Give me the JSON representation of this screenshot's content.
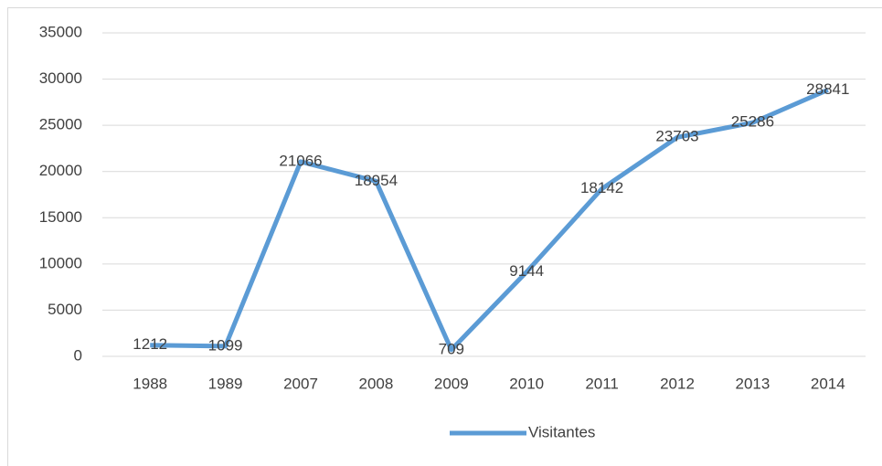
{
  "chart_data": {
    "type": "line",
    "categories": [
      "1988",
      "1989",
      "2007",
      "2008",
      "2009",
      "2010",
      "2011",
      "2012",
      "2013",
      "2014"
    ],
    "series": [
      {
        "name": "Visitantes",
        "color": "#5b9bd5",
        "values": [
          1212,
          1099,
          21066,
          18954,
          709,
          9144,
          18142,
          23703,
          25286,
          28841
        ]
      }
    ],
    "ylim": [
      0,
      35000
    ],
    "yticks": [
      0,
      5000,
      10000,
      15000,
      20000,
      25000,
      30000,
      35000
    ],
    "grid": true,
    "data_labels": true,
    "legend": "bottom"
  }
}
